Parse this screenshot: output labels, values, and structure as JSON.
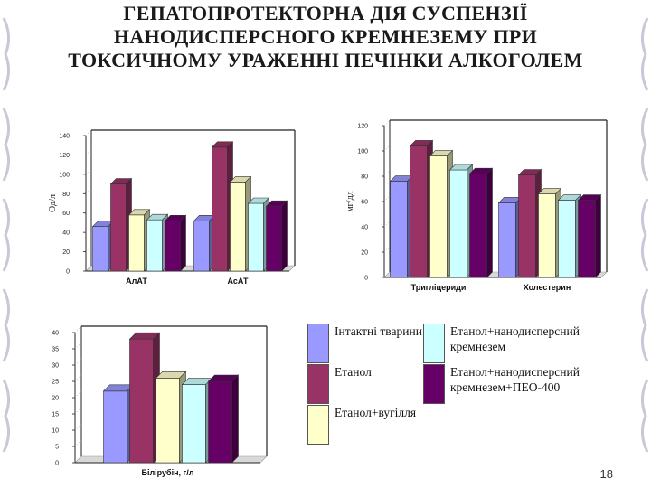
{
  "title": "ГЕПАТОПРОТЕКТОРНА ДІЯ СУСПЕНЗІЇ НАНОДИСПЕРСНОГО КРЕМНЕЗЕМУ ПРИ ТОКСИЧНОМУ УРАЖЕННІ ПЕЧІНКИ АЛКОГОЛЕМ",
  "page_number": "18",
  "colors": {
    "intact": "#9999ff",
    "ethanol": "#993366",
    "ethanol_coal": "#ffffcc",
    "ethanol_nano": "#ccffff",
    "ethanol_nano_peo": "#660066"
  },
  "legend": [
    {
      "label": "Інтактні тварини",
      "color": "#9999ff"
    },
    {
      "label": "Етанол",
      "color": "#993366"
    },
    {
      "label": "Етанол+вугілля",
      "color": "#ffffcc"
    },
    {
      "label": "Етанол+нанодисперсний кремнезем",
      "color": "#ccffff"
    },
    {
      "label": "Етанол+нанодисперсний кремнезем+ПЕО-400",
      "color": "#660066"
    }
  ],
  "chart_data": [
    {
      "type": "bar",
      "categories": [
        "АлАТ",
        "АсАТ"
      ],
      "ylabel": "Од/л",
      "ylim": [
        0,
        140
      ],
      "yticks": [
        0,
        20,
        40,
        60,
        80,
        100,
        120,
        140
      ],
      "series": [
        {
          "name": "Інтактні тварини",
          "values": [
            46,
            52
          ]
        },
        {
          "name": "Етанол",
          "values": [
            90,
            128
          ]
        },
        {
          "name": "Етанол+вугілля",
          "values": [
            58,
            92
          ]
        },
        {
          "name": "Етанол+нанодисперсний кремнезем",
          "values": [
            53,
            70
          ]
        },
        {
          "name": "Етанол+нанодисперсний кремнезем+ПЕО-400",
          "values": [
            52,
            67
          ]
        }
      ]
    },
    {
      "type": "bar",
      "categories": [
        "Тригліцериди",
        "Холестерин"
      ],
      "ylabel": "мг/дл",
      "ylim": [
        0,
        120
      ],
      "yticks": [
        0,
        20,
        40,
        60,
        80,
        100,
        120
      ],
      "series": [
        {
          "name": "Інтактні тварини",
          "values": [
            76,
            59
          ]
        },
        {
          "name": "Етанол",
          "values": [
            104,
            81
          ]
        },
        {
          "name": "Етанол+вугілля",
          "values": [
            96,
            66
          ]
        },
        {
          "name": "Етанол+нанодисперсний кремнезем",
          "values": [
            85,
            61
          ]
        },
        {
          "name": "Етанол+нанодисперсний кремнезем+ПЕО-400",
          "values": [
            82,
            61
          ]
        }
      ]
    },
    {
      "type": "bar",
      "categories": [
        "Білірубін, г/л"
      ],
      "ylabel": "",
      "ylim": [
        0,
        40
      ],
      "yticks": [
        0,
        5,
        10,
        15,
        20,
        25,
        30,
        35,
        40
      ],
      "series": [
        {
          "name": "Інтактні тварини",
          "values": [
            22
          ]
        },
        {
          "name": "Етанол",
          "values": [
            38
          ]
        },
        {
          "name": "Етанол+вугілля",
          "values": [
            26
          ]
        },
        {
          "name": "Етанол+нанодисперсний кремнезем",
          "values": [
            24
          ]
        },
        {
          "name": "Етанол+нанодисперсний кремнезем+ПЕО-400",
          "values": [
            25
          ]
        }
      ]
    }
  ]
}
